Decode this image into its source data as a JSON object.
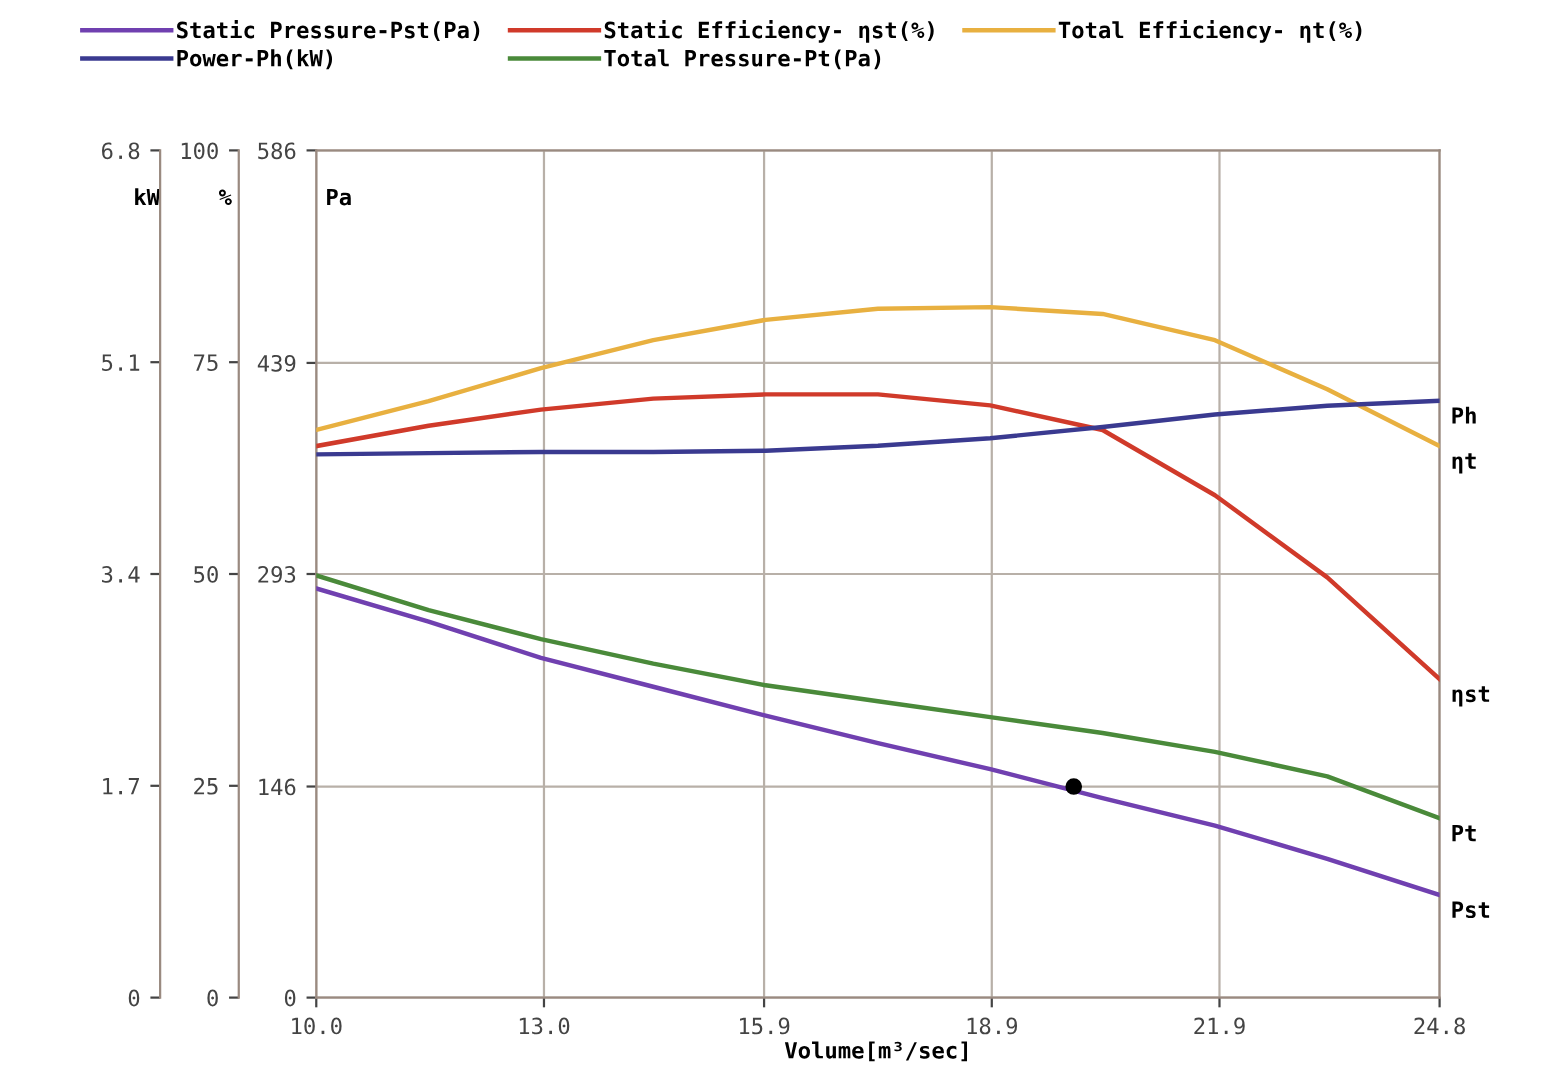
{
  "chart_data": {
    "type": "line",
    "xlabel": "Volume[m³/sec]",
    "ylabel": "Pa",
    "y2label": "%",
    "y3label": "kW",
    "x": [
      10.0,
      11.48,
      12.96,
      14.44,
      15.92,
      17.4,
      18.88,
      20.36,
      21.84,
      23.32,
      24.8
    ],
    "xlim": [
      10.0,
      24.8
    ],
    "xticks": [
      {
        "value": 10.0,
        "label": "10.0"
      },
      {
        "value": 13.0,
        "label": "13.0"
      },
      {
        "value": 15.9,
        "label": "15.9"
      },
      {
        "value": 18.9,
        "label": "18.9"
      },
      {
        "value": 21.9,
        "label": "21.9"
      },
      {
        "value": 24.8,
        "label": "24.8"
      }
    ],
    "ylim": [
      0,
      586
    ],
    "yticks": [
      0,
      146,
      293,
      439,
      586
    ],
    "y2lim": [
      0,
      100
    ],
    "y2ticks": [
      0,
      25,
      50,
      75,
      100
    ],
    "y3lim": [
      0,
      6.8
    ],
    "y3ticks": [
      0,
      1.7,
      3.4,
      5.1,
      6.8
    ],
    "grid": true,
    "legend": "top",
    "marker": "none",
    "line_style": "solid",
    "series": [
      {
        "name": "Static Pressure-Pst(Pa)",
        "color": "#7040b0",
        "values": [
          283,
          260,
          235,
          215,
          195,
          176,
          158,
          138,
          119,
          96,
          71
        ]
      },
      {
        "name": "Power-Ph(kW)",
        "color": "#3a3a90",
        "axis": "y3",
        "values": [
          4.36,
          4.37,
          4.38,
          4.38,
          4.39,
          4.43,
          4.49,
          4.58,
          4.68,
          4.75,
          4.79
        ]
      },
      {
        "name": "Static Efficiency- ηst(%)",
        "color": "#d03a2a",
        "axis": "y2",
        "values": [
          65.1,
          67.5,
          69.4,
          70.7,
          71.2,
          71.2,
          69.9,
          67.0,
          59.3,
          49.6,
          37.6
        ]
      },
      {
        "name": "Total Pressure-Pt(Pa)",
        "color": "#4a8a3a",
        "values": [
          292,
          268,
          248,
          231,
          216,
          205,
          194,
          183,
          170,
          153,
          124
        ]
      },
      {
        "name": "Total Efficiency- ηt(%)",
        "color": "#e8b040",
        "axis": "y2",
        "values": [
          67.0,
          70.4,
          74.3,
          77.6,
          80.0,
          81.3,
          81.5,
          80.7,
          77.6,
          71.8,
          65.1
        ]
      },
      {
        "type": "scatter",
        "color": "#000000",
        "marker": "circle",
        "x": [
          19.98
        ],
        "values": [
          146
        ]
      }
    ],
    "annotations": [
      "Ph",
      "ηt",
      "ηst",
      "Pt",
      "Pst"
    ]
  }
}
